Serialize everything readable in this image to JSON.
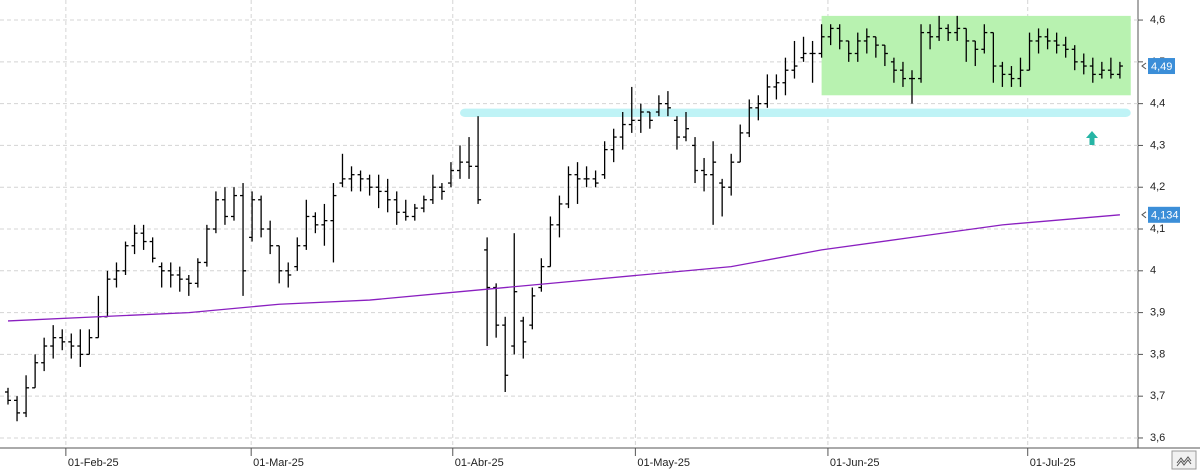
{
  "chart_data": {
    "type": "ohlc",
    "color": "#000000",
    "open": [
      3.71,
      3.69,
      3.66,
      3.72,
      3.78,
      3.82,
      3.84,
      3.83,
      3.82,
      3.8,
      3.84,
      3.89,
      3.98,
      4.0,
      4.06,
      4.09,
      4.07,
      4.01,
      4.0,
      3.99,
      3.98,
      3.97,
      4.02,
      4.1,
      4.17,
      4.13,
      4.18,
      4.08,
      4.17,
      4.1,
      4.06,
      4.0,
      4.01,
      4.06,
      4.13,
      4.11,
      4.12,
      4.21,
      4.22,
      4.23,
      4.22,
      4.2,
      4.19,
      4.17,
      4.14,
      4.13,
      4.15,
      4.17,
      4.2,
      4.21,
      4.24,
      4.26,
      4.25,
      4.05,
      3.96,
      3.87,
      3.82,
      3.88,
      3.87,
      3.96,
      4.01,
      4.11,
      4.16,
      4.23,
      4.22,
      4.22,
      4.23,
      4.29,
      4.32,
      4.35,
      4.36,
      4.38,
      4.38,
      4.4,
      4.36,
      4.32,
      4.3,
      4.24,
      4.23,
      4.21,
      4.2,
      4.26,
      4.33,
      4.39,
      4.4,
      4.44,
      4.45,
      4.48,
      4.51,
      4.52,
      4.52,
      4.56,
      4.58,
      4.55,
      4.52,
      4.55,
      4.56,
      4.54,
      4.5,
      4.48,
      4.46,
      4.46,
      4.57,
      4.56,
      4.58,
      4.57,
      4.58,
      4.55,
      4.53,
      4.57,
      4.49,
      4.47,
      4.46,
      4.48,
      4.55,
      4.56,
      4.55,
      4.54,
      4.53,
      4.5,
      4.49,
      4.47,
      4.48,
      4.47
    ],
    "high": [
      3.72,
      3.7,
      3.75,
      3.8,
      3.84,
      3.87,
      3.86,
      3.85,
      3.86,
      3.86,
      3.94,
      4.0,
      4.02,
      4.07,
      4.11,
      4.11,
      4.08,
      4.02,
      4.02,
      4.01,
      3.99,
      4.03,
      4.11,
      4.19,
      4.2,
      4.2,
      4.21,
      4.19,
      4.18,
      4.12,
      4.06,
      4.02,
      4.08,
      4.17,
      4.14,
      4.16,
      4.21,
      4.28,
      4.25,
      4.24,
      4.23,
      4.23,
      4.22,
      4.19,
      4.17,
      4.16,
      4.18,
      4.23,
      4.21,
      4.26,
      4.3,
      4.32,
      4.37,
      4.08,
      3.97,
      3.89,
      4.09,
      3.89,
      3.96,
      4.03,
      4.13,
      4.18,
      4.25,
      4.26,
      4.25,
      4.24,
      4.31,
      4.34,
      4.38,
      4.44,
      4.4,
      4.38,
      4.42,
      4.43,
      4.37,
      4.38,
      4.32,
      4.27,
      4.31,
      4.22,
      4.28,
      4.35,
      4.41,
      4.42,
      4.47,
      4.47,
      4.51,
      4.55,
      4.56,
      4.55,
      4.59,
      4.59,
      4.59,
      4.55,
      4.57,
      4.58,
      4.56,
      4.54,
      4.51,
      4.5,
      4.48,
      4.59,
      4.59,
      4.61,
      4.59,
      4.61,
      4.58,
      4.55,
      4.59,
      4.57,
      4.5,
      4.49,
      4.51,
      4.57,
      4.58,
      4.58,
      4.57,
      4.56,
      4.54,
      4.52,
      4.51,
      4.5,
      4.51,
      4.5
    ],
    "low": [
      3.68,
      3.64,
      3.65,
      3.72,
      3.76,
      3.79,
      3.81,
      3.79,
      3.77,
      3.8,
      3.84,
      3.89,
      3.96,
      3.99,
      4.04,
      4.05,
      4.02,
      3.96,
      3.96,
      3.95,
      3.94,
      3.96,
      4.01,
      4.09,
      4.11,
      4.12,
      3.94,
      4.07,
      4.08,
      4.04,
      3.97,
      3.96,
      4.0,
      4.05,
      4.09,
      4.06,
      4.02,
      4.2,
      4.19,
      4.19,
      4.18,
      4.15,
      4.14,
      4.11,
      4.12,
      4.12,
      4.14,
      4.16,
      4.17,
      4.2,
      4.22,
      4.22,
      4.16,
      3.82,
      3.84,
      3.71,
      3.8,
      3.79,
      3.86,
      3.95,
      4.01,
      4.08,
      4.15,
      4.16,
      4.2,
      4.2,
      4.22,
      4.26,
      4.29,
      4.33,
      4.33,
      4.34,
      4.37,
      4.37,
      4.29,
      4.31,
      4.21,
      4.19,
      4.11,
      4.13,
      4.18,
      4.26,
      4.32,
      4.36,
      4.39,
      4.41,
      4.42,
      4.46,
      4.5,
      4.45,
      4.51,
      4.54,
      4.53,
      4.5,
      4.5,
      4.52,
      4.51,
      4.49,
      4.45,
      4.44,
      4.4,
      4.45,
      4.53,
      4.55,
      4.55,
      4.55,
      4.5,
      4.49,
      4.52,
      4.45,
      4.44,
      4.44,
      4.44,
      4.48,
      4.52,
      4.53,
      4.52,
      4.51,
      4.48,
      4.47,
      4.45,
      4.46,
      4.46,
      4.46
    ],
    "close": [
      3.69,
      3.66,
      3.72,
      3.78,
      3.82,
      3.84,
      3.83,
      3.82,
      3.8,
      3.84,
      3.89,
      3.98,
      4.0,
      4.06,
      4.09,
      4.07,
      4.03,
      4.0,
      3.99,
      3.98,
      3.97,
      4.02,
      4.1,
      4.17,
      4.13,
      4.18,
      4.0,
      4.17,
      4.1,
      4.06,
      4.0,
      3.99,
      4.06,
      4.13,
      4.11,
      4.12,
      4.18,
      4.22,
      4.23,
      4.22,
      4.2,
      4.19,
      4.17,
      4.14,
      4.13,
      4.15,
      4.17,
      4.2,
      4.19,
      4.24,
      4.26,
      4.25,
      4.17,
      3.96,
      3.87,
      3.75,
      3.95,
      3.83,
      3.94,
      4.01,
      4.11,
      4.16,
      4.23,
      4.22,
      4.22,
      4.21,
      4.29,
      4.32,
      4.35,
      4.36,
      4.38,
      4.36,
      4.4,
      4.39,
      4.32,
      4.34,
      4.24,
      4.23,
      4.26,
      4.2,
      4.26,
      4.33,
      4.39,
      4.4,
      4.44,
      4.45,
      4.48,
      4.49,
      4.52,
      4.52,
      4.56,
      4.58,
      4.55,
      4.52,
      4.55,
      4.56,
      4.54,
      4.52,
      4.48,
      4.46,
      4.46,
      4.57,
      4.56,
      4.58,
      4.57,
      4.58,
      4.55,
      4.53,
      4.57,
      4.49,
      4.47,
      4.46,
      4.48,
      4.55,
      4.56,
      4.55,
      4.54,
      4.53,
      4.5,
      4.49,
      4.47,
      4.48,
      4.47,
      4.49
    ],
    "ma": {
      "x": [
        0,
        10,
        20,
        30,
        40,
        50,
        60,
        70,
        80,
        90,
        100,
        110,
        123
      ],
      "values": [
        3.88,
        3.89,
        3.9,
        3.92,
        3.93,
        3.95,
        3.97,
        3.99,
        4.01,
        4.05,
        4.08,
        4.11,
        4.134
      ],
      "color": "#8a1fc0"
    },
    "highlight": {
      "x": [
        90,
        124.2
      ],
      "y": [
        4.42,
        4.61
      ],
      "color": "#b8f2b0"
    },
    "support_band": {
      "x": [
        50,
        124.2
      ],
      "y": [
        4.368,
        4.388
      ],
      "color": "#bff3f6"
    },
    "last_price": {
      "value": 4.49,
      "label": "4,49"
    },
    "ma_last": {
      "value": 4.134,
      "label": "4,134"
    },
    "xlim": [
      -0.885,
      125.0
    ],
    "xticks": [
      {
        "value": 6.4,
        "label": "01-Feb-25"
      },
      {
        "value": 26.9,
        "label": "01-Mar-25"
      },
      {
        "value": 49.2,
        "label": "01-Abr-25"
      },
      {
        "value": 69.4,
        "label": "01-May-25"
      },
      {
        "value": 90.7,
        "label": "01-Jun-25"
      },
      {
        "value": 112.8,
        "label": "01-Jul-25"
      }
    ],
    "ylim": [
      3.576,
      4.648
    ],
    "yticks": [
      {
        "value": 3.6,
        "label": "3,6"
      },
      {
        "value": 3.7,
        "label": "3,7"
      },
      {
        "value": 3.8,
        "label": "3,8"
      },
      {
        "value": 3.9,
        "label": "3,9"
      },
      4,
      {
        "value": 4.1,
        "label": "4,1"
      },
      {
        "value": 4.2,
        "label": "4,2"
      },
      {
        "value": 4.3,
        "label": "4,3"
      },
      {
        "value": 4.4,
        "label": "4,4"
      },
      {
        "value": 4.5,
        "label": "4,5"
      },
      {
        "value": 4.6,
        "label": "4,6"
      }
    ],
    "grid": true
  }
}
